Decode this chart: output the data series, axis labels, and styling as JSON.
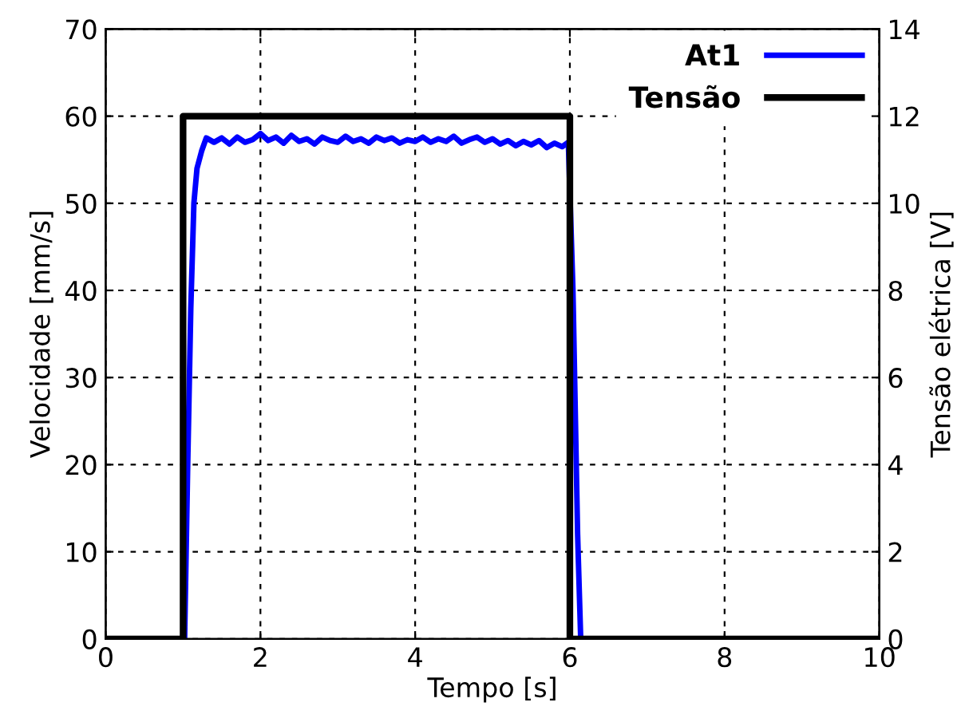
{
  "chart_data": {
    "type": "line",
    "xlabel": "Tempo [s]",
    "ylabel": "Velocidade [mm/s]",
    "y2label": "Tensão elétrica [V]",
    "xlim": [
      0,
      10
    ],
    "xticks": [
      0,
      2,
      4,
      6,
      8,
      10
    ],
    "ylim": [
      0,
      70
    ],
    "yticks": [
      0,
      10,
      20,
      30,
      40,
      50,
      60,
      70
    ],
    "y2lim": [
      0,
      14
    ],
    "y2ticks": [
      0,
      2,
      4,
      6,
      8,
      10,
      12,
      14
    ],
    "grid": true,
    "legend": "top right",
    "line_style": "solid",
    "series": [
      {
        "name": "At1",
        "color": "#0000ff",
        "axis": "y",
        "x": [
          0,
          1.02,
          1.06,
          1.1,
          1.14,
          1.18,
          1.24,
          1.3,
          1.4,
          1.5,
          1.6,
          1.7,
          1.8,
          1.9,
          2.0,
          2.1,
          2.2,
          2.3,
          2.4,
          2.5,
          2.6,
          2.7,
          2.8,
          2.9,
          3.0,
          3.1,
          3.2,
          3.3,
          3.4,
          3.5,
          3.6,
          3.7,
          3.8,
          3.9,
          4.0,
          4.1,
          4.2,
          4.3,
          4.4,
          4.5,
          4.6,
          4.7,
          4.8,
          4.9,
          5.0,
          5.1,
          5.2,
          5.3,
          5.4,
          5.5,
          5.6,
          5.7,
          5.8,
          5.9,
          5.98,
          6.04,
          6.1,
          6.14,
          10
        ],
        "values": [
          0,
          0,
          20,
          38,
          50,
          54,
          56,
          57.5,
          57,
          57.5,
          56.8,
          57.6,
          57,
          57.3,
          58,
          57.2,
          57.6,
          56.9,
          57.8,
          57.1,
          57.4,
          56.8,
          57.6,
          57.2,
          57,
          57.7,
          57.1,
          57.4,
          56.9,
          57.6,
          57.2,
          57.5,
          56.9,
          57.3,
          57.1,
          57.6,
          57,
          57.4,
          57.1,
          57.7,
          56.9,
          57.3,
          57.6,
          57,
          57.4,
          56.8,
          57.2,
          56.6,
          57.1,
          56.7,
          57.2,
          56.4,
          56.9,
          56.5,
          57,
          40,
          12,
          0,
          0
        ]
      },
      {
        "name": "Tensão",
        "color": "#000000",
        "axis": "y2",
        "x": [
          0,
          1,
          1,
          6,
          6,
          10
        ],
        "values": [
          0,
          0,
          12,
          12,
          0,
          0
        ]
      }
    ]
  }
}
